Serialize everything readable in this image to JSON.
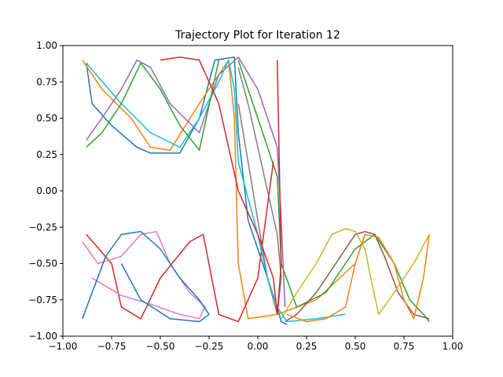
{
  "chart_data": {
    "type": "line",
    "title": "Trajectory Plot for Iteration 12",
    "xlabel": "",
    "ylabel": "",
    "xlim": [
      -1.0,
      1.0
    ],
    "ylim": [
      -1.0,
      1.0
    ],
    "xticks": [
      -1.0,
      -0.75,
      -0.5,
      -0.25,
      0.0,
      0.25,
      0.5,
      0.75,
      1.0
    ],
    "xtick_labels": [
      "−1.00",
      "−0.75",
      "−0.50",
      "−0.25",
      "0.00",
      "0.25",
      "0.50",
      "0.75",
      "1.00"
    ],
    "yticks": [
      1.0,
      0.75,
      0.5,
      0.25,
      0.0,
      -0.25,
      -0.5,
      -0.75,
      -1.0
    ],
    "ytick_labels": [
      "1.00",
      "0.75",
      "0.50",
      "0.25",
      "0.00",
      "−0.25",
      "−0.50",
      "−0.75",
      "−1.00"
    ],
    "grid": false,
    "legend": "none",
    "colors": [
      "#1f77b4",
      "#ff7f0e",
      "#2ca02c",
      "#d62728",
      "#9467bd",
      "#8c564b",
      "#e377c2",
      "#7f7f7f",
      "#bcbd22",
      "#17becf"
    ],
    "series": [
      {
        "color": "#1f77b4",
        "x": [
          -0.88,
          -0.85,
          -0.75,
          -0.62,
          -0.55,
          -0.4,
          -0.3,
          -0.22,
          -0.12,
          -0.1,
          -0.05,
          0.05,
          0.1,
          0.12,
          0.15
        ],
        "y": [
          0.88,
          0.6,
          0.45,
          0.3,
          0.26,
          0.26,
          0.5,
          0.9,
          0.92,
          0.4,
          -0.2,
          -0.6,
          -0.8,
          -0.9,
          -0.92
        ]
      },
      {
        "color": "#ff7f0e",
        "x": [
          -0.9,
          -0.8,
          -0.65,
          -0.55,
          -0.45,
          -0.3,
          -0.15,
          -0.12,
          -0.11,
          -0.1,
          -0.05,
          0.1,
          0.3,
          0.5,
          0.55
        ],
        "y": [
          0.9,
          0.7,
          0.5,
          0.3,
          0.28,
          0.6,
          0.9,
          0.5,
          0.0,
          -0.5,
          -0.88,
          -0.85,
          -0.75,
          -0.5,
          -0.3
        ]
      },
      {
        "color": "#2ca02c",
        "x": [
          -0.1,
          0.0,
          0.1,
          0.12,
          0.2,
          0.35,
          0.5,
          0.6,
          0.7,
          0.78,
          0.85,
          0.88
        ],
        "y": [
          0.9,
          0.5,
          0.1,
          -0.5,
          -0.8,
          -0.7,
          -0.4,
          -0.3,
          -0.5,
          -0.75,
          -0.85,
          -0.9
        ]
      },
      {
        "color": "#d62728",
        "x": [
          -0.88,
          -0.75,
          -0.7,
          -0.6,
          -0.5,
          -0.35,
          -0.28,
          -0.2,
          -0.1,
          0.0,
          0.08
        ],
        "y": [
          -0.3,
          -0.5,
          -0.8,
          -0.88,
          -0.6,
          -0.35,
          -0.3,
          -0.85,
          -0.9,
          -0.6,
          0.2
        ]
      },
      {
        "color": "#9467bd",
        "x": [
          -0.88,
          -0.8,
          -0.7,
          -0.62,
          -0.55,
          -0.45,
          -0.3,
          -0.2,
          -0.1,
          0.0,
          0.1,
          0.12,
          0.14
        ],
        "y": [
          0.35,
          0.5,
          0.7,
          0.9,
          0.85,
          0.6,
          0.4,
          0.8,
          0.92,
          0.7,
          0.3,
          -0.2,
          -0.8
        ]
      },
      {
        "color": "#8c564b",
        "x": [
          0.14,
          0.2,
          0.3,
          0.4,
          0.5,
          0.55,
          0.6,
          0.65,
          0.72,
          0.8,
          0.88
        ],
        "y": [
          -0.9,
          -0.85,
          -0.7,
          -0.5,
          -0.3,
          -0.28,
          -0.3,
          -0.45,
          -0.7,
          -0.85,
          -0.88
        ]
      },
      {
        "color": "#e377c2",
        "x": [
          -0.9,
          -0.82,
          -0.7,
          -0.6,
          -0.52,
          -0.45,
          -0.35,
          -0.27,
          -0.3,
          -0.4,
          -0.55,
          -0.7,
          -0.85
        ],
        "y": [
          -0.35,
          -0.5,
          -0.45,
          -0.3,
          -0.28,
          -0.5,
          -0.7,
          -0.8,
          -0.88,
          -0.85,
          -0.78,
          -0.72,
          -0.6
        ]
      },
      {
        "color": "#7f7f7f",
        "x": [
          -0.1,
          -0.05,
          0.0,
          0.05,
          0.1,
          0.12,
          0.1,
          0.05,
          0.0,
          -0.05,
          -0.1
        ],
        "y": [
          0.85,
          0.6,
          0.3,
          0.0,
          -0.3,
          -0.6,
          -0.85,
          -0.6,
          -0.2,
          0.2,
          0.6
        ]
      },
      {
        "color": "#bcbd22",
        "x": [
          0.12,
          0.2,
          0.3,
          0.38,
          0.45,
          0.5,
          0.55,
          0.58,
          0.62,
          0.7,
          0.8,
          0.88
        ],
        "y": [
          -0.88,
          -0.7,
          -0.5,
          -0.3,
          -0.26,
          -0.28,
          -0.4,
          -0.6,
          -0.85,
          -0.7,
          -0.5,
          -0.3
        ]
      },
      {
        "color": "#17becf",
        "x": [
          -0.88,
          -0.7,
          -0.55,
          -0.4,
          -0.3,
          -0.2,
          -0.15,
          -0.12,
          -0.1,
          0.0,
          0.05,
          0.1,
          0.15,
          0.3,
          0.45
        ],
        "y": [
          0.88,
          0.6,
          0.4,
          0.3,
          0.5,
          0.75,
          0.9,
          0.7,
          0.2,
          -0.3,
          -0.6,
          -0.8,
          -0.9,
          -0.88,
          -0.85
        ]
      },
      {
        "color": "#1f77b4",
        "x": [
          -0.9,
          -0.85,
          -0.78,
          -0.7,
          -0.6,
          -0.5,
          -0.4,
          -0.3,
          -0.25,
          -0.3,
          -0.45,
          -0.6,
          -0.7
        ],
        "y": [
          -0.88,
          -0.7,
          -0.45,
          -0.3,
          -0.28,
          -0.4,
          -0.6,
          -0.75,
          -0.85,
          -0.9,
          -0.88,
          -0.75,
          -0.5
        ]
      },
      {
        "color": "#2ca02c",
        "x": [
          -0.88,
          -0.8,
          -0.7,
          -0.6,
          -0.5,
          -0.4,
          -0.3,
          -0.2
        ],
        "y": [
          0.3,
          0.4,
          0.6,
          0.88,
          0.7,
          0.45,
          0.28,
          0.9
        ]
      },
      {
        "color": "#d62728",
        "x": [
          -0.5,
          -0.4,
          -0.3,
          -0.2,
          -0.15,
          -0.1,
          0.0,
          0.08,
          0.1,
          0.12,
          0.1
        ],
        "y": [
          0.9,
          0.92,
          0.9,
          0.6,
          0.3,
          0.0,
          -0.3,
          -0.6,
          -0.85,
          -0.5,
          0.9
        ]
      },
      {
        "color": "#ff7f0e",
        "x": [
          0.88,
          0.85,
          0.8,
          0.75,
          0.7,
          0.62,
          0.55,
          0.5,
          0.45,
          0.35,
          0.25,
          0.15
        ],
        "y": [
          -0.3,
          -0.6,
          -0.88,
          -0.75,
          -0.5,
          -0.32,
          -0.3,
          -0.5,
          -0.8,
          -0.88,
          -0.9,
          -0.85
        ]
      }
    ]
  }
}
